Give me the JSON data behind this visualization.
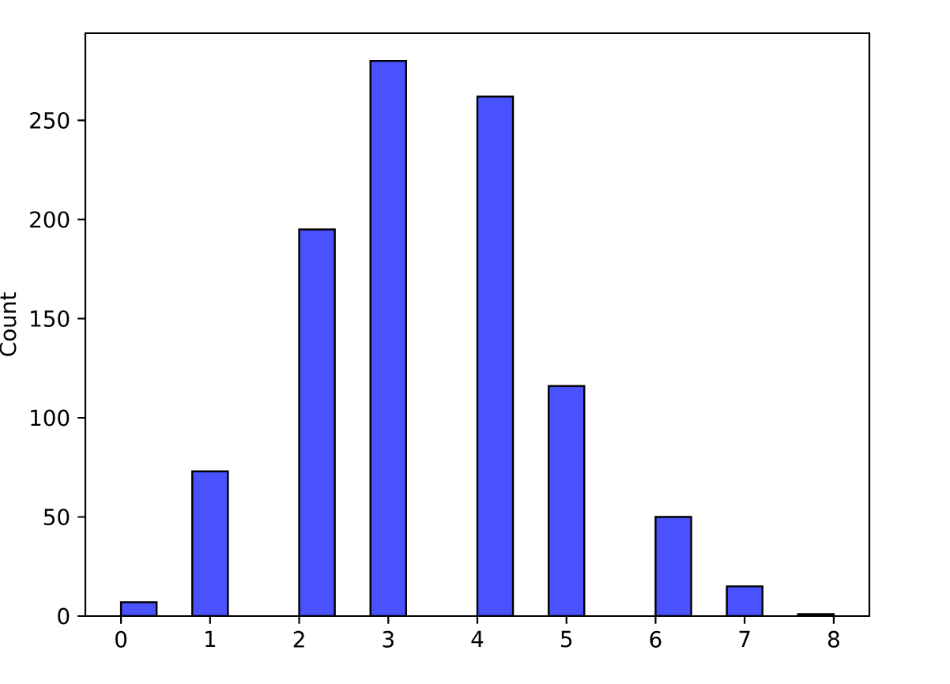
{
  "chart_data": {
    "type": "histogram",
    "ylabel": "Count",
    "bins": [
      0,
      0.4,
      0.8,
      1.2,
      1.6,
      2.0,
      2.4,
      2.8,
      3.2,
      3.6,
      4.0,
      4.4,
      4.8,
      5.2,
      5.6,
      6.0,
      6.4,
      6.8,
      7.2,
      7.6,
      8.0
    ],
    "values": [
      7,
      0,
      73,
      0,
      0,
      195,
      0,
      280,
      0,
      0,
      262,
      0,
      116,
      0,
      0,
      50,
      0,
      15,
      0,
      1
    ],
    "color": "#4a52ff",
    "xlim": [
      -0.4,
      8.4
    ],
    "ylim": [
      0,
      294
    ],
    "xticks": [
      0,
      1,
      2,
      3,
      4,
      5,
      6,
      7,
      8
    ],
    "yticks": [
      0,
      50,
      100,
      150,
      200,
      250
    ]
  }
}
